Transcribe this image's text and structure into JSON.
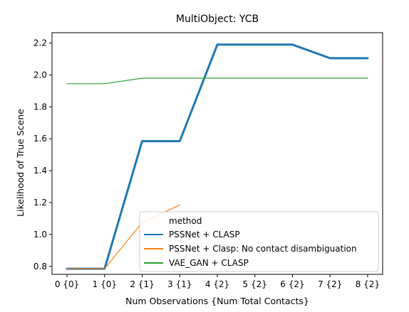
{
  "chart_data": {
    "type": "line",
    "title": "MultiObject: YCB",
    "xlabel": "Num Observations {Num Total Contacts}",
    "ylabel": "Likelihood of True Scene",
    "x_ticks": [
      "0 {0}",
      "1 {0}",
      "2 {1}",
      "3 {1}",
      "4 {2}",
      "5 {2}",
      "6 {2}",
      "7 {2}",
      "8 {2}"
    ],
    "x_range": [
      -0.4,
      8.4
    ],
    "y_ticks": [
      "0.8",
      "1.0",
      "1.2",
      "1.4",
      "1.6",
      "1.8",
      "2.0",
      "2.2"
    ],
    "ylim": [
      0.75,
      2.265
    ],
    "grid": false,
    "legend": {
      "title": "method",
      "placement": "lower right"
    },
    "series": [
      {
        "name": "PSSNet + CLASP",
        "color": "#1f77b4",
        "thick": true,
        "x": [
          0,
          1,
          2,
          3,
          4,
          5,
          6,
          7,
          8
        ],
        "y": [
          0.785,
          0.785,
          1.585,
          1.585,
          2.19,
          2.19,
          2.19,
          2.105,
          2.105
        ]
      },
      {
        "name": "PSSNet + Clasp: No contact disambiguation",
        "color": "#ff7f0e",
        "thick": false,
        "x": [
          0,
          1,
          2,
          3
        ],
        "y": [
          0.785,
          0.785,
          1.075,
          1.185
        ]
      },
      {
        "name": "VAE_GAN + CLASP",
        "color": "#2ca02c",
        "thick": false,
        "x": [
          0,
          1,
          2,
          3,
          4,
          5,
          6,
          7,
          8
        ],
        "y": [
          1.945,
          1.945,
          1.98,
          1.98,
          1.98,
          1.98,
          1.98,
          1.98,
          1.98
        ]
      }
    ]
  }
}
